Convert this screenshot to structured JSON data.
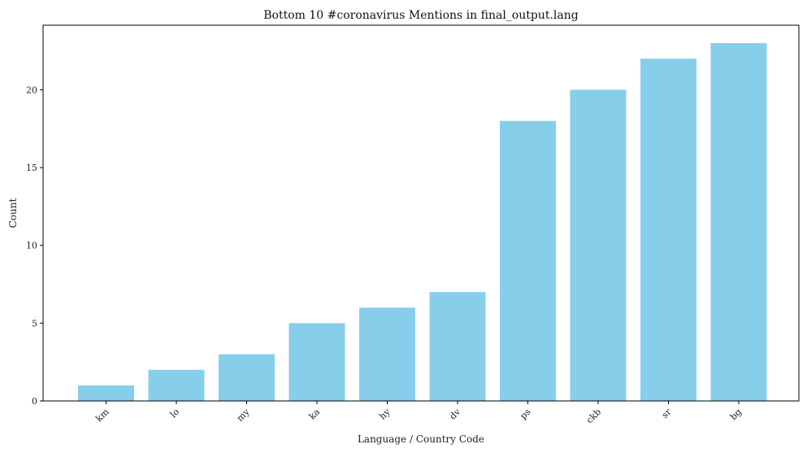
{
  "chart_data": {
    "type": "bar",
    "title": "Bottom 10 #coronavirus Mentions in final_output.lang",
    "xlabel": "Language / Country Code",
    "ylabel": "Count",
    "categories": [
      "km",
      "lo",
      "my",
      "ka",
      "hy",
      "dv",
      "ps",
      "ckb",
      "sr",
      "bg"
    ],
    "values": [
      1,
      2,
      3,
      5,
      6,
      7,
      18,
      20,
      22,
      23
    ],
    "ylim": [
      0,
      24.15
    ],
    "yticks": [
      0,
      5,
      10,
      15,
      20
    ],
    "bar_color": "#87CEEB",
    "grid": false
  }
}
